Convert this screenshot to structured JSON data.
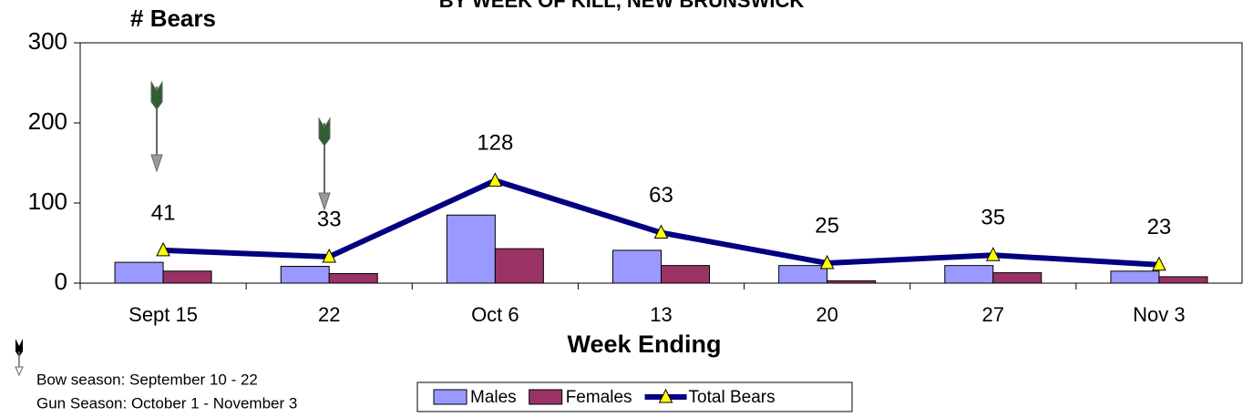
{
  "chart_data": {
    "type": "bar_line",
    "title": "BY WEEK OF KILL, NEW BRUNSWICK",
    "y_label": "# Bears",
    "x_label": "Week Ending",
    "categories": [
      "Sept 15",
      "22",
      "Oct 6",
      "13",
      "20",
      "27",
      "Nov 3"
    ],
    "series": [
      {
        "name": "Males",
        "type": "bar",
        "color": "#9999ff",
        "values": [
          26,
          21,
          85,
          41,
          22,
          22,
          15
        ]
      },
      {
        "name": "Females",
        "type": "bar",
        "color": "#993366",
        "values": [
          15,
          12,
          43,
          22,
          3,
          13,
          8
        ]
      },
      {
        "name": "Total Bears",
        "type": "line",
        "color": "#000080",
        "marker_color": "#ffff00",
        "values": [
          41,
          33,
          128,
          63,
          25,
          35,
          23
        ]
      }
    ],
    "ylim": [
      0,
      300
    ],
    "yticks": [
      0,
      100,
      200,
      300
    ],
    "notes": [
      "Bow season: September 10 - 22",
      "Gun Season: October 1 - November 3"
    ]
  }
}
